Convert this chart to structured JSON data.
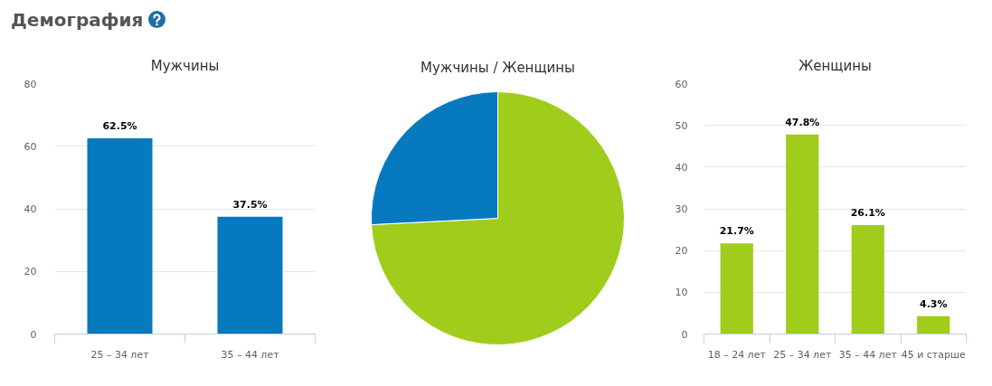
{
  "chart_data": [
    {
      "type": "other",
      "title": "Демография"
    },
    {
      "type": "bar",
      "title": "Мужчины",
      "categories": [
        "25 – 34 лет",
        "35 – 44 лет"
      ],
      "values": [
        62.5,
        37.5
      ],
      "color": "#0779bf",
      "value_labels": [
        "62.5%",
        "37.5%"
      ],
      "ylim": [
        0,
        80
      ],
      "yticks": [
        0,
        20,
        40,
        60,
        80
      ],
      "grid": "y"
    },
    {
      "type": "pie",
      "title": "Мужчины / Женщины",
      "categories": [
        null,
        null
      ],
      "values": [
        74.2,
        25.8
      ],
      "colors": [
        "#a0cd1b",
        "#0779bf"
      ]
    },
    {
      "type": "bar",
      "title": "Женщины",
      "categories": [
        "18 – 24 лет",
        "25 – 34 лет",
        "35 – 44 лет",
        "45 и старше"
      ],
      "values": [
        21.7,
        47.8,
        26.1,
        4.3
      ],
      "color": "#a0cd1b",
      "value_labels": [
        "21.7%",
        "47.8%",
        "26.1%",
        "4.3%"
      ],
      "ylim": [
        0,
        60
      ],
      "yticks": [
        0,
        10,
        20,
        30,
        40,
        50,
        60
      ],
      "grid": "y"
    }
  ]
}
